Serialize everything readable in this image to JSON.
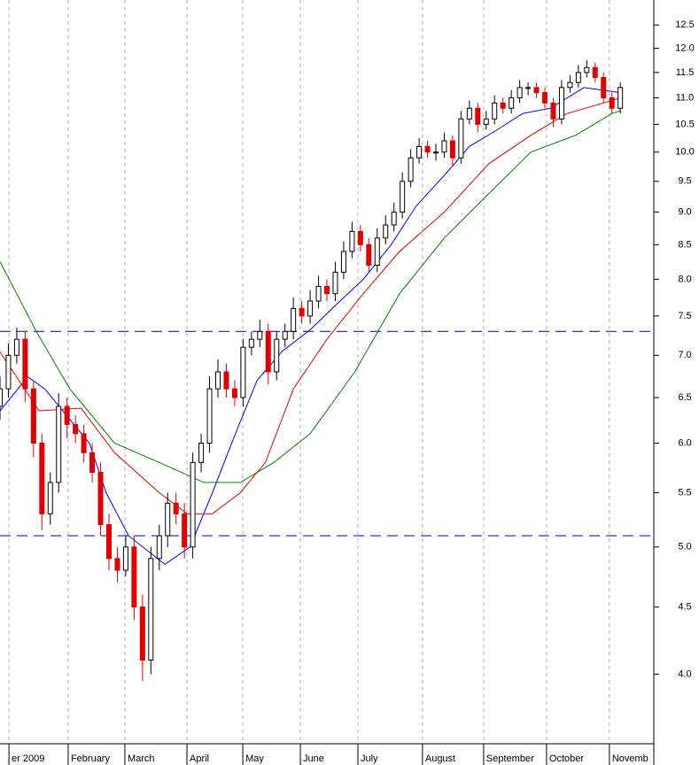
{
  "chart_data": {
    "type": "candlestick",
    "log_scale": true,
    "xlim": [
      0,
      234
    ],
    "ylim": [
      3.54,
      13.06
    ],
    "yticks": [
      {
        "value": 4.0,
        "label": "4.0"
      },
      {
        "value": 4.5,
        "label": "4.5"
      },
      {
        "value": 5.0,
        "label": "5.0"
      },
      {
        "value": 5.5,
        "label": "5.5"
      },
      {
        "value": 6.0,
        "label": "6.0"
      },
      {
        "value": 6.5,
        "label": "6.5"
      },
      {
        "value": 7.0,
        "label": "7.0"
      },
      {
        "value": 7.5,
        "label": "7.5"
      },
      {
        "value": 8.0,
        "label": "8.0"
      },
      {
        "value": 8.5,
        "label": "8.5"
      },
      {
        "value": 9.0,
        "label": "9.0"
      },
      {
        "value": 9.5,
        "label": "9.5"
      },
      {
        "value": 10.0,
        "label": "10.0"
      },
      {
        "value": 10.5,
        "label": "10.5"
      },
      {
        "value": 11.0,
        "label": "11.0"
      },
      {
        "value": 11.5,
        "label": "11.5"
      },
      {
        "value": 12.0,
        "label": "12.0"
      },
      {
        "value": 12.5,
        "label": "12.5"
      }
    ],
    "xticks": [
      {
        "value": 3.2,
        "label": "er 2009"
      },
      {
        "value": 24.4,
        "label": "February"
      },
      {
        "value": 44.7,
        "label": "March"
      },
      {
        "value": 66.9,
        "label": "April"
      },
      {
        "value": 86.9,
        "label": "May"
      },
      {
        "value": 107.5,
        "label": "June"
      },
      {
        "value": 128.1,
        "label": "July"
      },
      {
        "value": 151.2,
        "label": "August"
      },
      {
        "value": 173.1,
        "label": "September"
      },
      {
        "value": 195.6,
        "label": "October"
      },
      {
        "value": 218.1,
        "label": "Novemb"
      }
    ],
    "hlines": [
      7.3,
      5.1
    ],
    "hline_color": "#1a1ad6",
    "up_color": "#ffffff",
    "down_color": "#e00000",
    "candles": {
      "x": [
        0,
        3,
        6,
        9,
        12,
        15,
        18,
        21,
        24,
        27,
        30,
        33,
        36,
        39,
        42,
        45,
        48,
        51,
        54,
        57,
        60,
        63,
        66,
        69,
        72,
        75,
        78,
        81,
        84,
        87,
        90,
        93,
        96,
        99,
        102,
        105,
        108,
        111,
        114,
        117,
        120,
        123,
        126,
        129,
        132,
        135,
        138,
        141,
        144,
        147,
        150,
        153,
        156,
        159,
        162,
        165,
        168,
        171,
        174,
        177,
        180,
        183,
        186,
        189,
        192,
        195,
        198,
        201,
        204,
        207,
        210,
        213,
        216,
        219,
        222
      ],
      "open": [
        6.4,
        6.6,
        7.0,
        7.2,
        6.6,
        6.0,
        5.3,
        5.6,
        6.4,
        6.2,
        6.1,
        5.9,
        5.7,
        5.2,
        4.9,
        4.8,
        5.0,
        4.5,
        4.1,
        4.9,
        5.1,
        5.4,
        5.3,
        5.0,
        5.8,
        6.0,
        6.6,
        6.8,
        6.6,
        6.5,
        7.1,
        7.2,
        7.3,
        6.8,
        7.2,
        7.3,
        7.6,
        7.5,
        7.7,
        7.9,
        7.8,
        8.1,
        8.4,
        8.7,
        8.5,
        8.2,
        8.6,
        8.8,
        9.0,
        9.5,
        9.9,
        10.1,
        10.0,
        10.0,
        10.2,
        9.9,
        10.6,
        10.8,
        10.5,
        10.6,
        10.9,
        10.8,
        11.0,
        11.2,
        11.2,
        11.1,
        10.9,
        10.6,
        11.2,
        11.3,
        11.5,
        11.6,
        11.4,
        11.0,
        10.8
      ],
      "high": [
        6.75,
        7.15,
        7.35,
        7.3,
        6.7,
        6.1,
        5.7,
        6.55,
        6.5,
        6.3,
        6.2,
        6.0,
        5.8,
        5.3,
        5.0,
        5.1,
        5.1,
        4.6,
        5.0,
        5.2,
        5.5,
        5.5,
        5.4,
        5.9,
        6.1,
        6.75,
        6.95,
        6.9,
        6.7,
        7.2,
        7.3,
        7.45,
        7.4,
        7.3,
        7.4,
        7.75,
        7.7,
        7.85,
        8.05,
        8.0,
        8.25,
        8.55,
        8.85,
        8.8,
        8.6,
        8.75,
        8.95,
        9.15,
        9.65,
        10.05,
        10.25,
        10.2,
        10.15,
        10.35,
        10.3,
        10.75,
        10.95,
        10.9,
        10.75,
        11.05,
        11.0,
        11.15,
        11.35,
        11.3,
        11.3,
        11.2,
        11.0,
        11.35,
        11.45,
        11.65,
        11.75,
        11.7,
        11.5,
        11.1,
        11.3
      ],
      "low": [
        6.25,
        6.5,
        6.9,
        6.45,
        5.85,
        5.15,
        5.2,
        5.5,
        6.05,
        6.0,
        5.8,
        5.6,
        5.1,
        4.8,
        4.7,
        4.75,
        4.4,
        3.95,
        4.0,
        4.8,
        5.0,
        5.2,
        4.9,
        4.9,
        5.7,
        5.9,
        6.5,
        6.5,
        6.4,
        6.4,
        7.0,
        7.1,
        6.65,
        6.7,
        7.1,
        7.2,
        7.4,
        7.4,
        7.6,
        7.7,
        7.7,
        8.0,
        8.3,
        8.4,
        8.1,
        8.1,
        8.5,
        8.7,
        8.9,
        9.4,
        9.8,
        9.9,
        9.85,
        9.9,
        9.75,
        9.8,
        10.5,
        10.35,
        10.4,
        10.5,
        10.7,
        10.7,
        10.9,
        11.05,
        11.0,
        10.8,
        10.45,
        10.5,
        11.1,
        11.2,
        11.4,
        11.3,
        10.9,
        10.7,
        10.7
      ],
      "close": [
        6.6,
        7.0,
        7.2,
        6.6,
        6.0,
        5.3,
        5.6,
        6.4,
        6.2,
        6.1,
        5.9,
        5.7,
        5.2,
        4.9,
        4.8,
        5.0,
        4.5,
        4.1,
        4.9,
        5.1,
        5.4,
        5.3,
        5.0,
        5.8,
        6.0,
        6.6,
        6.8,
        6.6,
        6.5,
        7.1,
        7.2,
        7.3,
        6.8,
        7.2,
        7.3,
        7.6,
        7.5,
        7.7,
        7.9,
        7.8,
        8.1,
        8.4,
        8.7,
        8.5,
        8.2,
        8.6,
        8.8,
        9.0,
        9.5,
        9.9,
        10.1,
        10.0,
        10.0,
        10.2,
        9.9,
        10.6,
        10.8,
        10.5,
        10.6,
        10.9,
        10.8,
        11.0,
        11.2,
        11.2,
        11.1,
        10.9,
        10.6,
        11.2,
        11.3,
        11.5,
        11.6,
        11.4,
        11.0,
        10.8,
        11.2
      ]
    },
    "series": [
      {
        "color": "#0000ff",
        "x": [
          0,
          10,
          16,
          32,
          38,
          46,
          59,
          68,
          76,
          84,
          92,
          101,
          111,
          120,
          130,
          140,
          149,
          159,
          168,
          178,
          187,
          197,
          209,
          222
        ],
        "values": [
          6.35,
          6.74,
          6.6,
          6.0,
          5.5,
          5.1,
          4.85,
          5.0,
          5.5,
          6.08,
          6.7,
          7.05,
          7.32,
          7.64,
          8.0,
          8.5,
          9.1,
          9.6,
          10.1,
          10.4,
          10.7,
          10.8,
          11.2,
          11.1
        ]
      },
      {
        "color": "#e00000",
        "x": [
          0,
          14,
          29,
          41,
          57,
          67,
          76,
          86,
          95,
          105,
          117,
          130,
          143,
          159,
          175,
          190,
          203,
          216,
          222
        ],
        "values": [
          7.04,
          6.35,
          6.38,
          5.9,
          5.5,
          5.3,
          5.3,
          5.5,
          5.8,
          6.6,
          7.2,
          7.8,
          8.4,
          9.0,
          9.8,
          10.3,
          10.7,
          10.9,
          11.0
        ]
      },
      {
        "color": "#008000",
        "x": [
          0,
          13,
          25,
          41,
          57,
          73,
          86,
          98,
          111,
          127,
          143,
          159,
          175,
          190,
          206,
          219,
          222
        ],
        "values": [
          8.25,
          7.3,
          6.6,
          6.0,
          5.8,
          5.6,
          5.6,
          5.8,
          6.1,
          6.8,
          7.8,
          8.6,
          9.3,
          10.0,
          10.3,
          10.7,
          10.75
        ]
      }
    ]
  }
}
